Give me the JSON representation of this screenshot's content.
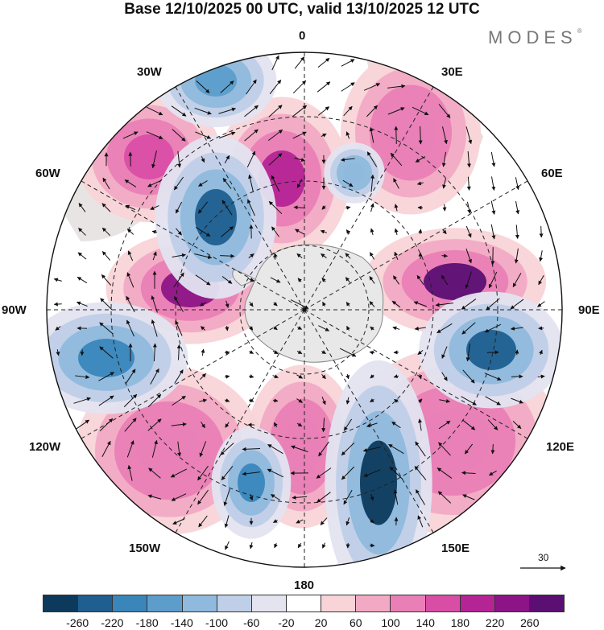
{
  "title": "Base 12/10/2025 00 UTC, valid 13/10/2025 12 UTC",
  "brand": "MODES",
  "brand_mark": "®",
  "longitude_labels": {
    "top": "0",
    "top_right": "30E",
    "right_upper": "60E",
    "right": "90E",
    "right_lower": "120E",
    "bottom_right": "150E",
    "bottom": "180",
    "bottom_left": "150W",
    "left_lower": "120W",
    "left": "90W",
    "left_upper": "60W",
    "top_left": "30W"
  },
  "reference_vector": {
    "label": "30"
  },
  "colorbar": {
    "ticks": [
      "-260",
      "-220",
      "-180",
      "-140",
      "-100",
      "-60",
      "-20",
      "20",
      "60",
      "100",
      "140",
      "180",
      "220",
      "260"
    ],
    "colors": [
      "#0d3a5c",
      "#1f5f8f",
      "#3a86bb",
      "#5c9dcb",
      "#8fb9dd",
      "#bfcfe7",
      "#e3e4f0",
      "#ffffff",
      "#f8d4d8",
      "#f2aac4",
      "#e97fb6",
      "#d94ea5",
      "#b52495",
      "#8d1486",
      "#5b0f73"
    ]
  },
  "anomaly_centres": [
    {
      "sign": "+",
      "value": 200,
      "color": "#b52495"
    },
    {
      "sign": "+",
      "value": 220,
      "color": "#8d1486"
    },
    {
      "sign": "+",
      "value": 180,
      "color": "#d94ea5"
    },
    {
      "sign": "+",
      "value": 260,
      "color": "#5b0f73"
    },
    {
      "sign": "+",
      "value": 160,
      "color": "#e97fb6"
    },
    {
      "sign": "+",
      "value": 120,
      "color": "#e97fb6"
    },
    {
      "sign": "+",
      "value": 110,
      "color": "#e97fb6"
    },
    {
      "sign": "+",
      "value": 130,
      "color": "#e97fb6"
    },
    {
      "sign": "-",
      "value": -200,
      "color": "#1f5f8f"
    },
    {
      "sign": "-",
      "value": -180,
      "color": "#3a86bb"
    },
    {
      "sign": "-",
      "value": -220,
      "color": "#1f5f8f"
    },
    {
      "sign": "-",
      "value": -240,
      "color": "#0d3a5c"
    },
    {
      "sign": "-",
      "value": -150,
      "color": "#3a86bb"
    },
    {
      "sign": "-",
      "value": -120,
      "color": "#5c9dcb"
    },
    {
      "sign": "-",
      "value": -90,
      "color": "#8fb9dd"
    }
  ]
}
